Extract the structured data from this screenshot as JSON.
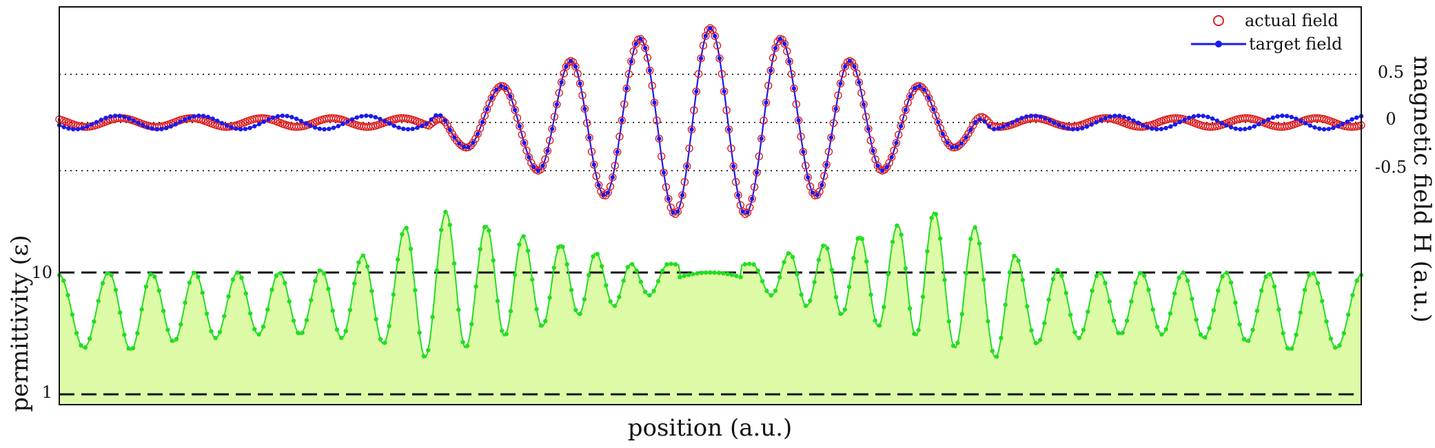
{
  "chart_data": {
    "type": "line",
    "xlabel": "position (a.u.)",
    "ylabel_left": "permittivity (ε)",
    "ylabel_right": "magnetic field H (a.u.)",
    "left_axis": {
      "scale": "log",
      "tick_values": [
        1,
        10
      ],
      "tick_labels": [
        "1",
        "10"
      ],
      "reference_lines": [
        1,
        10
      ]
    },
    "right_axis": {
      "tick_values": [
        0.5,
        0,
        -0.5
      ],
      "tick_labels": [
        "0.5",
        "0",
        "-0.5"
      ],
      "grid": "dotted"
    },
    "legend": {
      "position": "top-right",
      "entries": [
        {
          "label": "actual field",
          "marker": "open-circle",
          "color": "#dd1f1f"
        },
        {
          "label": "target field",
          "marker": "line-dot",
          "color": "#1a1aee"
        }
      ]
    },
    "colors": {
      "actual": "#dd1f1f",
      "target": "#1a1aee",
      "permittivity_line": "#22dd22",
      "permittivity_fill": "#ddfba6"
    },
    "series": [
      {
        "name": "actual field",
        "axis": "right",
        "description_model": "gaussian-wave packet plus small tail",
        "x_range": [
          0,
          100
        ],
        "peak_positions": [
          50.0,
          44.6,
          55.4,
          39.3,
          60.7,
          34.0,
          66.0,
          28.4,
          71.6
        ],
        "peak_values": [
          0.98,
          0.87,
          0.87,
          0.64,
          0.64,
          0.38,
          0.38,
          0.18,
          0.18
        ],
        "trough_positions": [
          47.3,
          52.7,
          41.9,
          58.1,
          36.8,
          63.2,
          31.3,
          68.7
        ],
        "trough_values": [
          -0.95,
          -0.95,
          -0.76,
          -0.76,
          -0.5,
          -0.5,
          -0.26,
          -0.26
        ]
      },
      {
        "name": "target field",
        "axis": "right",
        "x_range": [
          0,
          100
        ],
        "peak_positions": [
          50.0,
          44.6,
          55.4,
          39.3,
          60.7,
          34.0,
          66.0,
          28.4,
          71.6
        ],
        "peak_values": [
          0.98,
          0.87,
          0.87,
          0.64,
          0.64,
          0.38,
          0.38,
          0.18,
          0.18
        ],
        "trough_positions": [
          47.3,
          52.7,
          41.9,
          58.1,
          36.8,
          63.2,
          31.3,
          68.7
        ],
        "trough_values": [
          -0.95,
          -0.95,
          -0.76,
          -0.76,
          -0.5,
          -0.5,
          -0.26,
          -0.26
        ],
        "tail_oscillation_amplitude": 0.07
      },
      {
        "name": "permittivity",
        "axis": "left",
        "x_range": [
          0,
          100
        ],
        "peak_positions": [
          0,
          3.8,
          7.1,
          10.4,
          13.7,
          16.9,
          20.1,
          23.3,
          26.6,
          29.7,
          32.8,
          35.6,
          38.5,
          41.2,
          43.9,
          46.8,
          53.2,
          56.1,
          58.8,
          61.5,
          64.4,
          67.2,
          70.3,
          73.4,
          76.7,
          79.9,
          83.1,
          86.3,
          89.6,
          92.9,
          96.2,
          100
        ],
        "peak_values": [
          9.5,
          10.0,
          9.8,
          10.0,
          10.0,
          10.0,
          10.5,
          13.8,
          23.5,
          31.5,
          24.5,
          20.0,
          17.0,
          14.5,
          11.8,
          11.8,
          11.8,
          14.5,
          17.0,
          20.0,
          24.5,
          31.5,
          23.5,
          13.8,
          10.5,
          10.0,
          10.0,
          10.0,
          10.0,
          9.8,
          10.0,
          9.5
        ],
        "trough_positions": [
          1.9,
          5.5,
          8.8,
          12.0,
          15.3,
          18.5,
          21.7,
          24.9,
          28.1,
          31.2,
          34.2,
          37.1,
          39.9,
          42.6,
          45.3,
          50.0,
          54.7,
          57.4,
          60.1,
          62.9,
          65.8,
          68.8,
          71.9,
          75.1,
          78.3,
          81.5,
          84.7,
          87.9,
          91.2,
          94.5,
          98.1
        ],
        "trough_values": [
          2.4,
          2.3,
          2.7,
          2.9,
          3.1,
          3.1,
          2.9,
          2.6,
          2.0,
          2.4,
          3.0,
          3.6,
          4.5,
          5.3,
          6.5,
          10.0,
          6.5,
          5.3,
          4.5,
          3.6,
          3.0,
          2.4,
          2.0,
          2.6,
          2.9,
          3.1,
          3.1,
          2.9,
          2.7,
          2.3,
          2.4
        ],
        "centre_plateau": 10.0
      }
    ]
  }
}
